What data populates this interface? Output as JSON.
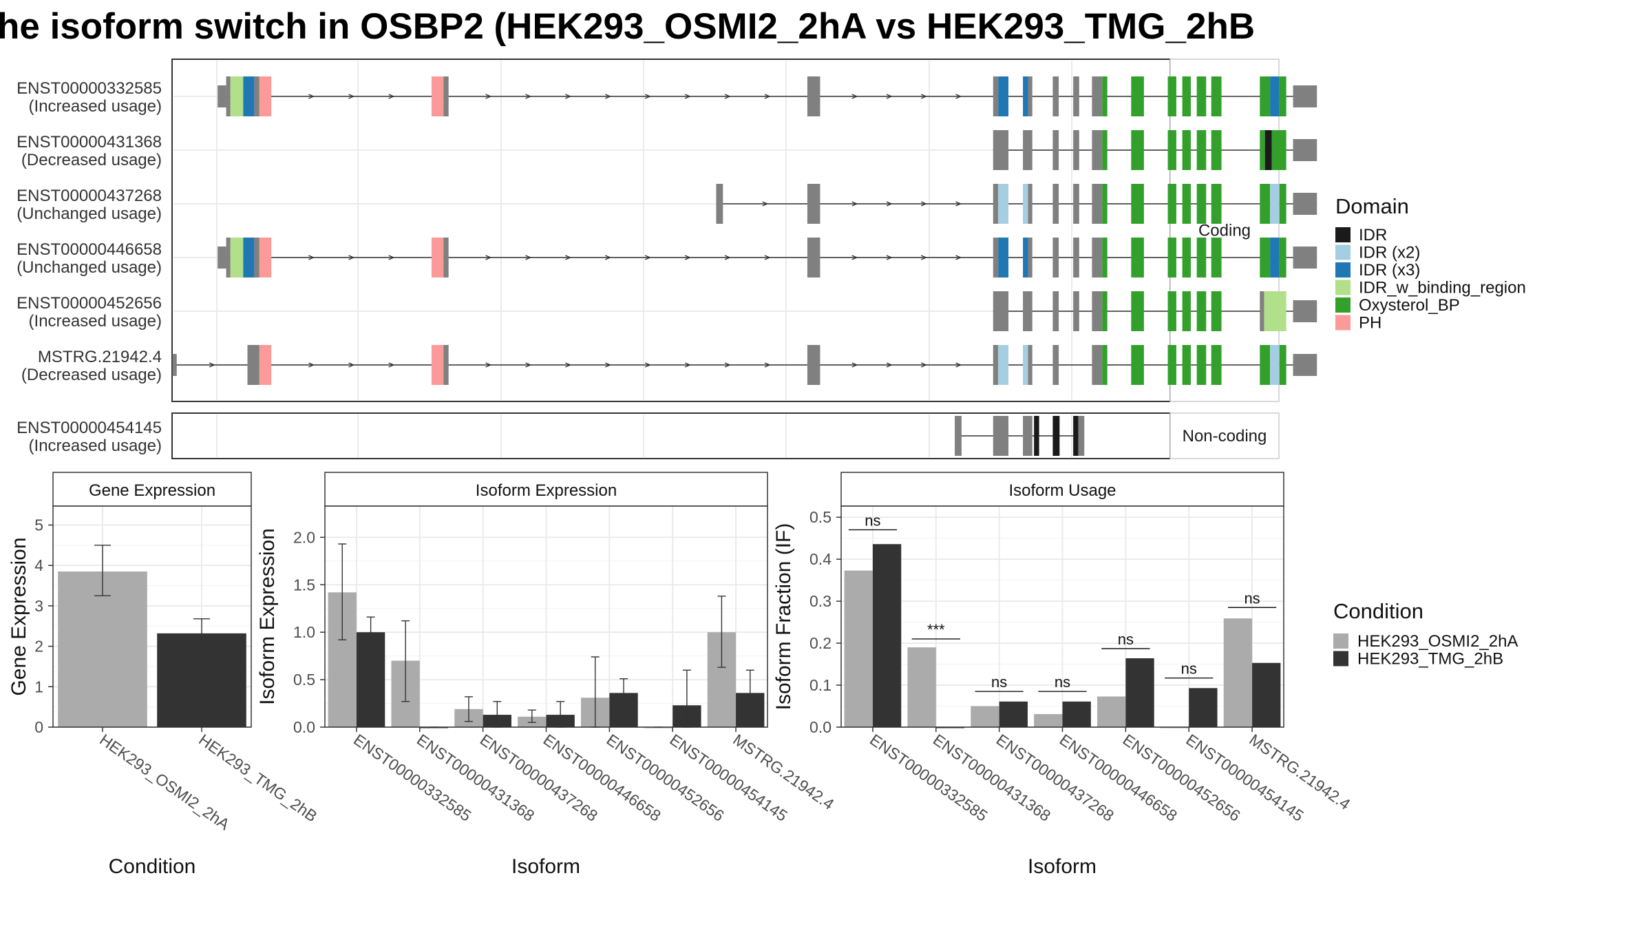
{
  "title": "he isoform switch in OSBP2 (HEK293_OSMI2_2hA vs HEK293_TMG_2hB",
  "facets": {
    "coding": "Coding",
    "noncoding": "Non-coding"
  },
  "transcripts": [
    {
      "id": "ENST00000332585",
      "usage": "(Increased usage)",
      "section": "coding",
      "start_tick": 5,
      "start_tick_h": 22,
      "exons": [
        [
          0.5,
          1.5,
          "#808080"
        ],
        [
          1.5,
          2,
          "#808080"
        ],
        [
          2,
          3.5,
          "#B2DF8A"
        ],
        [
          3.5,
          4.8,
          "#1F78B4"
        ],
        [
          4.8,
          5.4,
          "#808080"
        ],
        [
          5.4,
          6.8,
          "#FB9A99"
        ],
        [
          25.6,
          27.0,
          "#FB9A99"
        ],
        [
          27.0,
          27.6,
          "#808080"
        ],
        [
          69.7,
          71.2,
          "#808080"
        ],
        [
          91.5,
          92.1,
          "#808080"
        ],
        [
          92.1,
          93.3,
          "#1F78B4"
        ],
        [
          95.0,
          95.6,
          "#1F78B4"
        ],
        [
          95.6,
          96.1,
          "#808080"
        ],
        [
          98.5,
          99.2,
          "#808080"
        ],
        [
          100.9,
          101.6,
          "#808080"
        ],
        [
          103.1,
          104.3,
          "#808080"
        ],
        [
          104.3,
          104.9,
          "#33A02C"
        ],
        [
          107.7,
          109.2,
          "#33A02C"
        ],
        [
          112.0,
          113.0,
          "#33A02C"
        ],
        [
          113.7,
          114.7,
          "#33A02C"
        ],
        [
          115.4,
          116.5,
          "#33A02C"
        ],
        [
          117.1,
          118.3,
          "#33A02C"
        ],
        [
          122.8,
          124.0,
          "#33A02C"
        ],
        [
          124.0,
          125.1,
          "#1F78B4"
        ],
        [
          125.1,
          125.9,
          "#33A02C"
        ],
        [
          126.7,
          129.5,
          "#808080"
        ]
      ],
      "cds_end": 126.7
    },
    {
      "id": "ENST00000431368",
      "usage": "(Decreased usage)",
      "section": "coding",
      "start_tick": 87.0,
      "start_tick_h": 22,
      "exons": [
        [
          91.5,
          93.3,
          "#808080"
        ],
        [
          95.0,
          96.1,
          "#808080"
        ],
        [
          98.5,
          99.2,
          "#808080"
        ],
        [
          100.9,
          101.6,
          "#808080"
        ],
        [
          103.1,
          104.3,
          "#808080"
        ],
        [
          104.3,
          104.9,
          "#33A02C"
        ],
        [
          107.7,
          109.2,
          "#33A02C"
        ],
        [
          112.0,
          113.0,
          "#33A02C"
        ],
        [
          113.7,
          114.7,
          "#33A02C"
        ],
        [
          115.4,
          116.5,
          "#33A02C"
        ],
        [
          117.1,
          118.3,
          "#33A02C"
        ],
        [
          122.8,
          123.4,
          "#33A02C"
        ],
        [
          123.4,
          124.2,
          "#1A1A1A"
        ],
        [
          124.2,
          125.9,
          "#33A02C"
        ],
        [
          126.7,
          129.5,
          "#808080"
        ]
      ],
      "cds_end": 126.7
    },
    {
      "id": "ENST00000437268",
      "usage": "(Unchanged usage)",
      "section": "coding",
      "start_tick": 59.4,
      "start_tick_h": 40,
      "exons": [
        [
          59.0,
          59.8,
          "#808080"
        ],
        [
          69.7,
          71.2,
          "#808080"
        ],
        [
          91.5,
          92.1,
          "#808080"
        ],
        [
          92.1,
          93.3,
          "#A6CEE3"
        ],
        [
          95.0,
          95.6,
          "#A6CEE3"
        ],
        [
          95.6,
          96.1,
          "#808080"
        ],
        [
          98.5,
          99.2,
          "#808080"
        ],
        [
          100.9,
          101.6,
          "#808080"
        ],
        [
          103.1,
          104.3,
          "#808080"
        ],
        [
          104.3,
          104.9,
          "#33A02C"
        ],
        [
          107.7,
          109.2,
          "#33A02C"
        ],
        [
          112.0,
          113.0,
          "#33A02C"
        ],
        [
          113.7,
          114.7,
          "#33A02C"
        ],
        [
          115.4,
          116.5,
          "#33A02C"
        ],
        [
          117.1,
          118.3,
          "#33A02C"
        ],
        [
          122.8,
          124.0,
          "#33A02C"
        ],
        [
          124.0,
          125.1,
          "#A6CEE3"
        ],
        [
          125.1,
          125.9,
          "#33A02C"
        ],
        [
          126.7,
          129.5,
          "#808080"
        ]
      ],
      "cds_end": 126.7
    },
    {
      "id": "ENST00000446658",
      "usage": "(Unchanged usage)",
      "section": "coding",
      "start_tick": 1.0,
      "start_tick_h": 22,
      "exons": [
        [
          0.5,
          1.5,
          "#808080"
        ],
        [
          1.5,
          2,
          "#808080"
        ],
        [
          2,
          3.5,
          "#B2DF8A"
        ],
        [
          3.5,
          4.8,
          "#1F78B4"
        ],
        [
          4.8,
          5.4,
          "#808080"
        ],
        [
          5.4,
          6.8,
          "#FB9A99"
        ],
        [
          25.6,
          27.0,
          "#FB9A99"
        ],
        [
          27.0,
          27.6,
          "#808080"
        ],
        [
          69.7,
          71.2,
          "#808080"
        ],
        [
          91.5,
          92.1,
          "#808080"
        ],
        [
          92.1,
          93.3,
          "#1F78B4"
        ],
        [
          95.0,
          95.6,
          "#1F78B4"
        ],
        [
          95.6,
          96.1,
          "#808080"
        ],
        [
          98.5,
          99.2,
          "#808080"
        ],
        [
          100.9,
          101.6,
          "#808080"
        ],
        [
          103.1,
          104.3,
          "#808080"
        ],
        [
          104.3,
          104.9,
          "#33A02C"
        ],
        [
          107.7,
          109.2,
          "#33A02C"
        ],
        [
          112.0,
          113.0,
          "#33A02C"
        ],
        [
          113.7,
          114.7,
          "#33A02C"
        ],
        [
          115.4,
          116.5,
          "#33A02C"
        ],
        [
          117.1,
          118.3,
          "#33A02C"
        ],
        [
          122.8,
          124.0,
          "#33A02C"
        ],
        [
          124.0,
          125.1,
          "#1F78B4"
        ],
        [
          125.1,
          125.9,
          "#33A02C"
        ],
        [
          126.7,
          129.5,
          "#808080"
        ]
      ],
      "cds_end": 126.7
    },
    {
      "id": "ENST00000452656",
      "usage": "(Increased usage)",
      "section": "coding",
      "start_tick": 91.5,
      "start_tick_h": 0,
      "exons": [
        [
          91.5,
          93.3,
          "#808080"
        ],
        [
          95.0,
          96.1,
          "#808080"
        ],
        [
          98.5,
          99.2,
          "#808080"
        ],
        [
          100.9,
          101.6,
          "#808080"
        ],
        [
          103.1,
          104.3,
          "#808080"
        ],
        [
          104.3,
          104.9,
          "#33A02C"
        ],
        [
          107.7,
          109.2,
          "#33A02C"
        ],
        [
          112.0,
          113.0,
          "#33A02C"
        ],
        [
          113.7,
          114.7,
          "#33A02C"
        ],
        [
          115.4,
          116.5,
          "#33A02C"
        ],
        [
          117.1,
          118.3,
          "#33A02C"
        ],
        [
          122.8,
          123.3,
          "#808080"
        ],
        [
          123.3,
          125.9,
          "#B2DF8A"
        ],
        [
          126.7,
          129.5,
          "#808080"
        ]
      ],
      "cds_end": 126.7
    },
    {
      "id": "MSTRG.21942.4",
      "usage": "(Decreased usage)",
      "section": "coding",
      "start_tick": -4.5,
      "start_tick_h": 22,
      "exons": [
        [
          -4.8,
          -4.3,
          "#808080"
        ],
        [
          4.0,
          5.4,
          "#808080"
        ],
        [
          5.4,
          6.8,
          "#FB9A99"
        ],
        [
          25.6,
          27.0,
          "#FB9A99"
        ],
        [
          27.0,
          27.6,
          "#808080"
        ],
        [
          69.7,
          71.2,
          "#808080"
        ],
        [
          91.5,
          92.1,
          "#808080"
        ],
        [
          92.1,
          93.3,
          "#A6CEE3"
        ],
        [
          95.0,
          95.6,
          "#A6CEE3"
        ],
        [
          95.6,
          96.1,
          "#808080"
        ],
        [
          98.5,
          99.2,
          "#808080"
        ],
        [
          103.1,
          104.3,
          "#808080"
        ],
        [
          104.3,
          104.9,
          "#33A02C"
        ],
        [
          107.7,
          109.2,
          "#33A02C"
        ],
        [
          112.0,
          113.0,
          "#33A02C"
        ],
        [
          113.7,
          114.7,
          "#33A02C"
        ],
        [
          115.4,
          116.5,
          "#33A02C"
        ],
        [
          117.1,
          118.3,
          "#33A02C"
        ],
        [
          122.8,
          124.0,
          "#33A02C"
        ],
        [
          124.0,
          125.1,
          "#A6CEE3"
        ],
        [
          125.1,
          125.9,
          "#33A02C"
        ],
        [
          126.7,
          129.5,
          "#808080"
        ]
      ],
      "cds_end": 126.7
    }
  ],
  "noncoding_transcripts": [
    {
      "id": "ENST00000454145",
      "usage": "(Increased usage)",
      "section": "noncoding",
      "exons": [
        [
          87.0,
          87.8,
          "#808080"
        ],
        [
          91.5,
          93.3,
          "#808080"
        ],
        [
          95.0,
          96.1,
          "#808080"
        ],
        [
          96.3,
          96.9,
          "#1A1A1A"
        ],
        [
          98.5,
          99.3,
          "#1A1A1A"
        ],
        [
          100.9,
          101.5,
          "#1A1A1A"
        ],
        [
          101.5,
          102.2,
          "#808080"
        ]
      ]
    }
  ],
  "domain_legend": {
    "title": "Domain",
    "items": [
      {
        "label": "IDR",
        "color": "#1A1A1A"
      },
      {
        "label": "IDR (x2)",
        "color": "#A6CEE3"
      },
      {
        "label": "IDR (x3)",
        "color": "#1F78B4"
      },
      {
        "label": "IDR_w_binding_region",
        "color": "#B2DF8A"
      },
      {
        "label": "Oxysterol_BP",
        "color": "#33A02C"
      },
      {
        "label": "PH",
        "color": "#FB9A99"
      }
    ]
  },
  "condition_legend": {
    "title": "Condition",
    "items": [
      {
        "label": "HEK293_OSMI2_2hA",
        "color": "#ABABAB"
      },
      {
        "label": "HEK293_TMG_2hB",
        "color": "#333333"
      }
    ]
  },
  "chart_data": [
    {
      "type": "bar",
      "title": "Gene Expression",
      "xlabel": "Condition",
      "ylabel": "Gene Expression",
      "categories": [
        "HEK293_OSMI2_2hA",
        "HEK293_TMG_2hB"
      ],
      "values": [
        3.85,
        2.32
      ],
      "error_low": [
        3.25,
        1.97
      ],
      "error_high": [
        4.5,
        2.68
      ],
      "colors": [
        "#ABABAB",
        "#333333"
      ],
      "ylim": [
        0,
        5.4
      ],
      "yticks": [
        0,
        1,
        2,
        3,
        4,
        5
      ],
      "grid": true
    },
    {
      "type": "bar",
      "title": "Isoform Expression",
      "xlabel": "Isoform",
      "ylabel": "Isoform Expression",
      "categories": [
        "ENST00000332585",
        "ENST00000431368",
        "ENST00000437268",
        "ENST00000446658",
        "ENST00000452656",
        "ENST00000454145",
        "MSTRG.21942.4"
      ],
      "series": [
        {
          "name": "HEK293_OSMI2_2hA",
          "color": "#ABABAB",
          "values": [
            1.42,
            0.7,
            0.19,
            0.11,
            0.31,
            0.0,
            1.0
          ],
          "error_low": [
            0.92,
            0.27,
            0.06,
            0.05,
            0.0,
            0.0,
            0.63
          ],
          "error_high": [
            1.93,
            1.12,
            0.32,
            0.18,
            0.74,
            0.0,
            1.38
          ]
        },
        {
          "name": "HEK293_TMG_2hB",
          "color": "#333333",
          "values": [
            1.0,
            0.0,
            0.13,
            0.13,
            0.36,
            0.23,
            0.36
          ],
          "error_low": [
            0.85,
            0.0,
            0.0,
            0.0,
            0.22,
            0.0,
            0.13
          ],
          "error_high": [
            1.16,
            0.0,
            0.27,
            0.27,
            0.51,
            0.6,
            0.6
          ]
        }
      ],
      "ylim": [
        0,
        2.3
      ],
      "yticks": [
        0.0,
        0.5,
        1.0,
        1.5,
        2.0
      ],
      "grid": true
    },
    {
      "type": "bar",
      "title": "Isoform Usage",
      "xlabel": "Isoform",
      "ylabel": "Isoform Fraction (IF)",
      "categories": [
        "ENST00000332585",
        "ENST00000431368",
        "ENST00000437268",
        "ENST00000446658",
        "ENST00000452656",
        "ENST00000454145",
        "MSTRG.21942.4"
      ],
      "series": [
        {
          "name": "HEK293_OSMI2_2hA",
          "color": "#ABABAB",
          "values": [
            0.373,
            0.19,
            0.05,
            0.031,
            0.073,
            0.0,
            0.259
          ]
        },
        {
          "name": "HEK293_TMG_2hB",
          "color": "#333333",
          "values": [
            0.436,
            0.0,
            0.061,
            0.061,
            0.164,
            0.093,
            0.153
          ]
        }
      ],
      "significance": [
        "ns",
        "***",
        "ns",
        "ns",
        "ns",
        "ns",
        "ns"
      ],
      "sig_y": [
        0.47,
        0.21,
        0.085,
        0.085,
        0.187,
        0.117,
        0.285
      ],
      "ylim": [
        0,
        0.52
      ],
      "yticks": [
        0.0,
        0.1,
        0.2,
        0.3,
        0.4,
        0.5
      ],
      "grid": true
    }
  ]
}
